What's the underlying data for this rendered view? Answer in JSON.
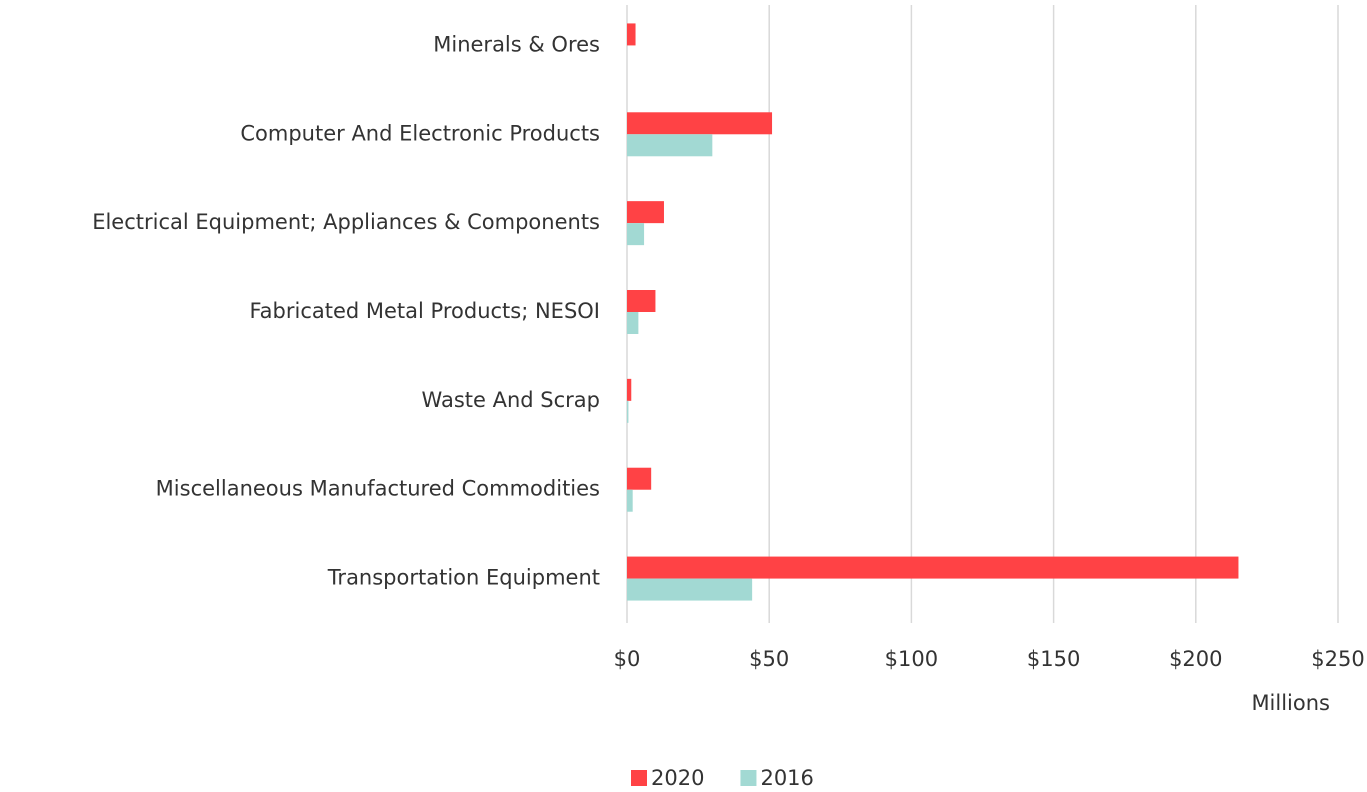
{
  "chart_data": {
    "type": "bar",
    "orientation": "horizontal",
    "categories": [
      "Minerals & Ores",
      "Computer And Electronic Products",
      "Electrical Equipment; Appliances & Components",
      "Fabricated Metal Products; NESOI",
      "Waste And Scrap",
      "Miscellaneous Manufactured Commodities",
      "Transportation Equipment"
    ],
    "series": [
      {
        "name": "2020",
        "color": "#ff4245",
        "values": [
          3,
          51,
          13,
          10,
          1.5,
          8.5,
          215
        ]
      },
      {
        "name": "2016",
        "color": "#a2d9d3",
        "values": [
          0,
          30,
          6,
          4,
          0.5,
          2,
          44
        ]
      }
    ],
    "xlim": [
      0,
      250
    ],
    "xticks": [
      {
        "value": 0,
        "label": "$0"
      },
      {
        "value": 50,
        "label": "$50"
      },
      {
        "value": 100,
        "label": "$100"
      },
      {
        "value": 150,
        "label": "$150"
      },
      {
        "value": 200,
        "label": "$200"
      },
      {
        "value": 250,
        "label": "$250"
      }
    ],
    "xlabel": "Millions",
    "grid": true,
    "legend": "bottom"
  }
}
